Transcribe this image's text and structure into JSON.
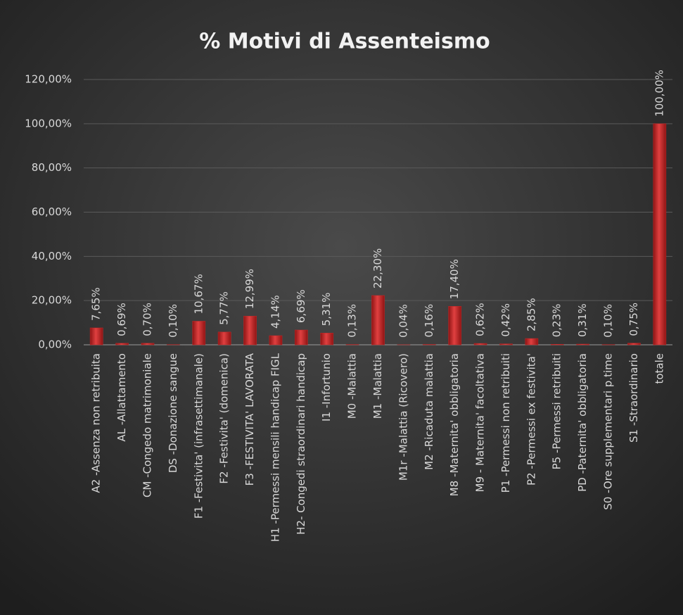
{
  "chart_data": {
    "type": "bar",
    "title": "%  Motivi  di Assenteismo",
    "categories": [
      "A2 -Assenza non retribuita",
      "AL -Allattamento",
      "CM -Congedo matrimoniale",
      "DS -Donazione sangue",
      "F1 -Festivita' (infrasettimanale)",
      "F2 -Festivita' (domenica)",
      "F3 -FESTIVITA' LAVORATA",
      "H1 -Permessi mensili handicap FIGL",
      "H2- Congedi straordinari handicap",
      "I1 -Infortunio",
      "M0 -Malattia",
      "M1 -Malattia",
      "M1r -Malattia (Ricovero)",
      "M2 -Ricaduta malattia",
      "M8 -Maternita' obbligatoria",
      "M9 - Maternita' facoltativa",
      "P1 -Permessi non retribuiti",
      "P2 -Permessi ex festivita'",
      "P5 -Permessi retribuiti",
      "PD -Paternita' obbligatoria",
      "S0 -Ore supplementari p.time",
      "S1 -Straordinario",
      "totale"
    ],
    "values": [
      7.65,
      0.69,
      0.7,
      0.1,
      10.67,
      5.77,
      12.99,
      4.14,
      6.69,
      5.31,
      0.13,
      22.3,
      0.04,
      0.16,
      17.4,
      0.62,
      0.42,
      2.85,
      0.23,
      0.31,
      0.1,
      0.75,
      100.0
    ],
    "value_labels": [
      "7,65%",
      "0,69%",
      "0,70%",
      "0,10%",
      "10,67%",
      "5,77%",
      "12,99%",
      "4,14%",
      "6,69%",
      "5,31%",
      "0,13%",
      "22,30%",
      "0,04%",
      "0,16%",
      "17,40%",
      "0,62%",
      "0,42%",
      "2,85%",
      "0,23%",
      "0,31%",
      "0,10%",
      "0,75%",
      "100,00%"
    ],
    "color": "#c62828",
    "ylim": [
      0,
      120
    ],
    "yticks": [
      {
        "value": 0,
        "label": "0,00%"
      },
      {
        "value": 20,
        "label": "20,00%"
      },
      {
        "value": 40,
        "label": "40,00%"
      },
      {
        "value": 60,
        "label": "60,00%"
      },
      {
        "value": 80,
        "label": "80,00%"
      },
      {
        "value": 100,
        "label": "100,00%"
      },
      {
        "value": 120,
        "label": "120,00%"
      }
    ],
    "grid": true
  }
}
